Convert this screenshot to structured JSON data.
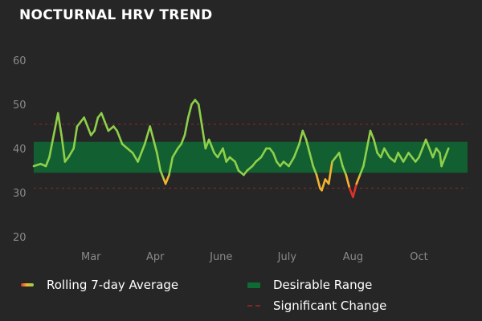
{
  "title": "NOCTURNAL HRV TREND",
  "colors": {
    "background": "#262626",
    "line": "#8fd04a",
    "line_low": "#f2b42e",
    "line_alert": "#e0302a",
    "desirable_range": "#0f6b34",
    "significant_change": "#7a2a2a",
    "tick_text": "#8a8a8a"
  },
  "legend": {
    "rolling_average": "Rolling 7-day Average",
    "desirable_range": "Desirable Range",
    "significant_change": "Significant Change"
  },
  "chart_data": {
    "type": "line",
    "title": "NOCTURNAL HRV TREND",
    "xlabel": "",
    "ylabel": "",
    "ylim": [
      20,
      60
    ],
    "yticks": [
      20,
      30,
      40,
      50,
      60
    ],
    "xlim": [
      0,
      250
    ],
    "xticks": [
      {
        "label": "Mar",
        "x": 33
      },
      {
        "label": "Apr",
        "x": 70
      },
      {
        "label": "June",
        "x": 108
      },
      {
        "label": "July",
        "x": 146
      },
      {
        "label": "Aug",
        "x": 184
      },
      {
        "label": "Oct",
        "x": 222
      }
    ],
    "desirable_range": [
      34.5,
      41.5
    ],
    "significant_change": [
      31,
      45.5
    ],
    "grid": false,
    "legend_position": "bottom",
    "series": [
      {
        "name": "Rolling 7-day Average",
        "points": [
          [
            0,
            36
          ],
          [
            4,
            36.5
          ],
          [
            7,
            36
          ],
          [
            9,
            38
          ],
          [
            11,
            42
          ],
          [
            13,
            46
          ],
          [
            14,
            48
          ],
          [
            16,
            43
          ],
          [
            18,
            37
          ],
          [
            20,
            38
          ],
          [
            23,
            40
          ],
          [
            25,
            45
          ],
          [
            27,
            46
          ],
          [
            29,
            47
          ],
          [
            31,
            45
          ],
          [
            33,
            43
          ],
          [
            35,
            44
          ],
          [
            37,
            47
          ],
          [
            39,
            48
          ],
          [
            41,
            46
          ],
          [
            43,
            44
          ],
          [
            46,
            45
          ],
          [
            48,
            44
          ],
          [
            51,
            41
          ],
          [
            54,
            40
          ],
          [
            57,
            39
          ],
          [
            60,
            37
          ],
          [
            62,
            39
          ],
          [
            64,
            41
          ],
          [
            67,
            45
          ],
          [
            69,
            42
          ],
          [
            71,
            39
          ],
          [
            73,
            35
          ],
          [
            75,
            33
          ],
          [
            76,
            32
          ],
          [
            78,
            34
          ],
          [
            80,
            38
          ],
          [
            83,
            40
          ],
          [
            85,
            41
          ],
          [
            87,
            43
          ],
          [
            89,
            47
          ],
          [
            91,
            50
          ],
          [
            93,
            51
          ],
          [
            95,
            50
          ],
          [
            97,
            45
          ],
          [
            99,
            40
          ],
          [
            101,
            42
          ],
          [
            104,
            39
          ],
          [
            106,
            38
          ],
          [
            109,
            40
          ],
          [
            111,
            37
          ],
          [
            113,
            38
          ],
          [
            116,
            37
          ],
          [
            118,
            35
          ],
          [
            121,
            34
          ],
          [
            123,
            35
          ],
          [
            126,
            36
          ],
          [
            128,
            37
          ],
          [
            131,
            38
          ],
          [
            134,
            40
          ],
          [
            136,
            40
          ],
          [
            138,
            39
          ],
          [
            140,
            37
          ],
          [
            142,
            36
          ],
          [
            144,
            37
          ],
          [
            147,
            36
          ],
          [
            150,
            38
          ],
          [
            153,
            41
          ],
          [
            155,
            44
          ],
          [
            157,
            42
          ],
          [
            159,
            39
          ],
          [
            161,
            36
          ],
          [
            163,
            34
          ],
          [
            165,
            31
          ],
          [
            166,
            30.5
          ],
          [
            168,
            33
          ],
          [
            170,
            32
          ],
          [
            172,
            37
          ],
          [
            174,
            38
          ],
          [
            176,
            39
          ],
          [
            178,
            36
          ],
          [
            180,
            34
          ],
          [
            182,
            31
          ],
          [
            184,
            29
          ],
          [
            186,
            32
          ],
          [
            188,
            34
          ],
          [
            190,
            36
          ],
          [
            192,
            40
          ],
          [
            194,
            44
          ],
          [
            196,
            42
          ],
          [
            198,
            39
          ],
          [
            200,
            38
          ],
          [
            202,
            40
          ],
          [
            205,
            38
          ],
          [
            208,
            37
          ],
          [
            210,
            39
          ],
          [
            213,
            37
          ],
          [
            216,
            39
          ],
          [
            218,
            38
          ],
          [
            220,
            37
          ],
          [
            222,
            38
          ],
          [
            224,
            40
          ],
          [
            226,
            42
          ],
          [
            228,
            40
          ],
          [
            230,
            38
          ],
          [
            232,
            40
          ],
          [
            234,
            39
          ],
          [
            235,
            36
          ],
          [
            237,
            38
          ],
          [
            239,
            40
          ]
        ]
      }
    ]
  }
}
